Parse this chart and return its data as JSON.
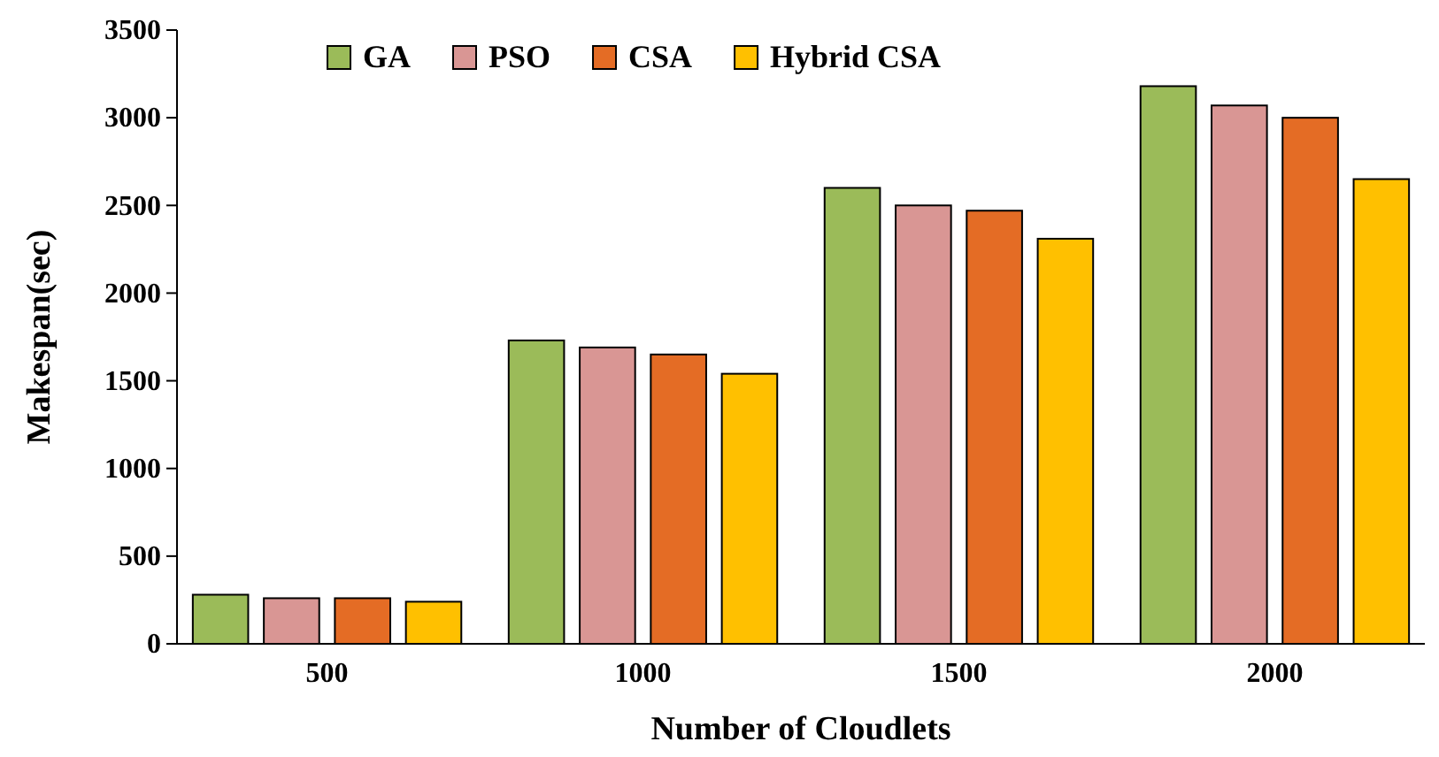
{
  "chart_data": {
    "type": "bar",
    "xlabel": "Number of Cloudlets",
    "ylabel": "Makespan(sec)",
    "categories": [
      "500",
      "1000",
      "1500",
      "2000"
    ],
    "series": [
      {
        "name": "GA",
        "color": "#9bbb59",
        "values": [
          280,
          1730,
          2600,
          3180
        ]
      },
      {
        "name": "PSO",
        "color": "#d99694",
        "values": [
          260,
          1690,
          2500,
          3070
        ]
      },
      {
        "name": "CSA",
        "color": "#e46c25",
        "values": [
          260,
          1650,
          2470,
          3000
        ]
      },
      {
        "name": "Hybrid CSA",
        "color": "#ffc000",
        "values": [
          240,
          1540,
          2310,
          2650
        ]
      }
    ],
    "ylim": [
      0,
      3500
    ],
    "yticks": [
      0,
      500,
      1000,
      1500,
      2000,
      2500,
      3000,
      3500
    ],
    "grid": false,
    "legend": "top"
  }
}
